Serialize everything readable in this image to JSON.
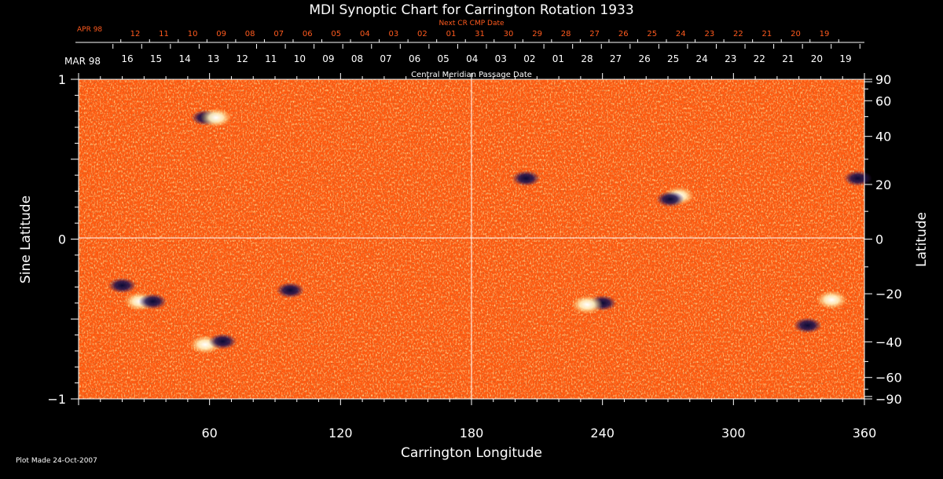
{
  "chart_data": {
    "type": "heatmap",
    "title": "MDI Synoptic Chart for Carrington Rotation 1933",
    "xlabel": "Carrington Longitude",
    "ylabel_left": "Sine Latitude",
    "ylabel_right": "Latitude",
    "xlim": [
      0,
      360
    ],
    "ylim": [
      -1,
      1
    ],
    "x_ticks": [
      60,
      120,
      180,
      240,
      300,
      360
    ],
    "y_ticks_left": [
      1,
      0,
      -1
    ],
    "y_ticks_left_labels": [
      "1",
      "0",
      "−1"
    ],
    "y_ticks_right": [
      90,
      60,
      40,
      20,
      0,
      -20,
      -40,
      -60,
      -90
    ],
    "y_ticks_right_labels": [
      "90",
      "60",
      "40",
      "20",
      "0",
      "−20",
      "−40",
      "−60",
      "−90"
    ],
    "next_cr_label": "Next CR CMP Date",
    "next_cr_month": "APR 98",
    "next_cr_dates": [
      "12",
      "11",
      "10",
      "09",
      "08",
      "07",
      "06",
      "05",
      "04",
      "03",
      "02",
      "01",
      "31",
      "30",
      "29",
      "28",
      "27",
      "26",
      "25",
      "24",
      "23",
      "22",
      "21",
      "20",
      "19"
    ],
    "cmp_label": "Central Meridian Passage Date",
    "cmp_month": "MAR 98",
    "cmp_dates": [
      "16",
      "15",
      "14",
      "13",
      "12",
      "11",
      "10",
      "09",
      "08",
      "07",
      "06",
      "05",
      "04",
      "03",
      "02",
      "01",
      "28",
      "27",
      "26",
      "25",
      "24",
      "23",
      "22",
      "21",
      "20",
      "19"
    ],
    "colors": {
      "background": "#ff5a10",
      "positive_field": "#ffffff",
      "negative_field": "#101040",
      "next_cr_text": "#ff5a1e"
    },
    "regions": [
      {
        "lon": 28,
        "sinlat": -0.39,
        "polarity": "positive"
      },
      {
        "lon": 34,
        "sinlat": -0.39,
        "polarity": "negative"
      },
      {
        "lon": 58,
        "sinlat": -0.66,
        "polarity": "positive"
      },
      {
        "lon": 66,
        "sinlat": -0.64,
        "polarity": "negative"
      },
      {
        "lon": 20,
        "sinlat": -0.29,
        "polarity": "negative"
      },
      {
        "lon": 97,
        "sinlat": -0.32,
        "polarity": "negative"
      },
      {
        "lon": 240,
        "sinlat": -0.4,
        "polarity": "negative"
      },
      {
        "lon": 233,
        "sinlat": -0.41,
        "polarity": "positive"
      },
      {
        "lon": 275,
        "sinlat": 0.27,
        "polarity": "positive"
      },
      {
        "lon": 271,
        "sinlat": 0.25,
        "polarity": "negative"
      },
      {
        "lon": 205,
        "sinlat": 0.38,
        "polarity": "negative"
      },
      {
        "lon": 58,
        "sinlat": 0.76,
        "polarity": "negative"
      },
      {
        "lon": 63,
        "sinlat": 0.76,
        "polarity": "positive"
      },
      {
        "lon": 357,
        "sinlat": 0.38,
        "polarity": "negative"
      },
      {
        "lon": 345,
        "sinlat": -0.38,
        "polarity": "positive"
      },
      {
        "lon": 334,
        "sinlat": -0.54,
        "polarity": "negative"
      }
    ]
  },
  "footer": {
    "plot_made": "Plot Made 24-Oct-2007"
  }
}
